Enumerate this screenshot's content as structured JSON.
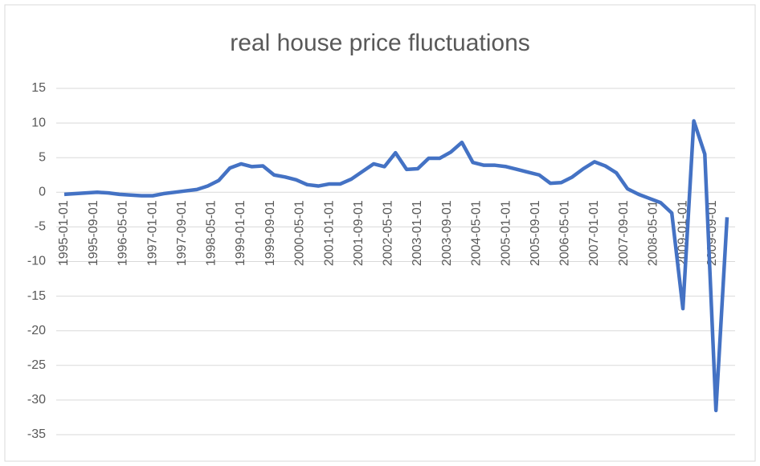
{
  "chart_data": {
    "type": "line",
    "title": "real house price fluctuations",
    "x": [
      "1995-01-01",
      "1995-04-01",
      "1995-07-01",
      "1995-10-01",
      "1996-01-01",
      "1996-04-01",
      "1996-07-01",
      "1996-10-01",
      "1997-01-01",
      "1997-04-01",
      "1997-07-01",
      "1997-10-01",
      "1998-01-01",
      "1998-04-01",
      "1998-07-01",
      "1998-10-01",
      "1999-01-01",
      "1999-04-01",
      "1999-07-01",
      "1999-10-01",
      "2000-01-01",
      "2000-04-01",
      "2000-07-01",
      "2000-10-01",
      "2001-01-01",
      "2001-04-01",
      "2001-07-01",
      "2001-10-01",
      "2002-01-01",
      "2002-04-01",
      "2002-07-01",
      "2002-10-01",
      "2003-01-01",
      "2003-04-01",
      "2003-07-01",
      "2003-10-01",
      "2004-01-01",
      "2004-04-01",
      "2004-07-01",
      "2004-10-01",
      "2005-01-01",
      "2005-04-01",
      "2005-07-01",
      "2005-10-01",
      "2006-01-01",
      "2006-04-01",
      "2006-07-01",
      "2006-10-01",
      "2007-01-01",
      "2007-04-01",
      "2007-07-01",
      "2007-10-01",
      "2008-01-01",
      "2008-04-01",
      "2008-07-01",
      "2008-10-01",
      "2009-01-01",
      "2009-04-01",
      "2009-07-01",
      "2009-10-01",
      "2010-01-01"
    ],
    "series": [
      {
        "color": "#4472c4",
        "values": [
          -0.3,
          -0.2,
          -0.1,
          0.0,
          -0.1,
          -0.3,
          -0.4,
          -0.5,
          -0.5,
          -0.2,
          0.0,
          0.2,
          0.4,
          0.9,
          1.7,
          3.5,
          4.1,
          3.7,
          3.8,
          2.5,
          2.2,
          1.8,
          1.1,
          0.9,
          1.2,
          1.2,
          1.9,
          3.0,
          4.1,
          3.7,
          5.7,
          3.3,
          3.4,
          4.9,
          4.9,
          5.8,
          7.2,
          4.3,
          3.9,
          3.9,
          3.7,
          3.3,
          2.9,
          2.5,
          1.3,
          1.4,
          2.2,
          3.4,
          4.4,
          3.8,
          2.8,
          0.5,
          -0.3,
          -0.9,
          -1.5,
          -3.0,
          -16.8,
          10.3,
          5.5,
          -31.5,
          -3.6
        ]
      }
    ],
    "xlim": [
      "1995-01-01",
      "2010-01-01"
    ],
    "xticks": [
      "1995-01-01",
      "1995-09-01",
      "1996-05-01",
      "1997-01-01",
      "1997-09-01",
      "1998-05-01",
      "1999-01-01",
      "1999-09-01",
      "2000-05-01",
      "2001-01-01",
      "2001-09-01",
      "2002-05-01",
      "2003-01-01",
      "2003-09-01",
      "2004-05-01",
      "2005-01-01",
      "2005-09-01",
      "2006-05-01",
      "2007-01-01",
      "2007-09-01",
      "2008-05-01",
      "2009-01-01",
      "2009-09-01"
    ],
    "ylim": [
      -35,
      15
    ],
    "yticks": [
      -35,
      -30,
      -25,
      -20,
      -15,
      -10,
      -5,
      0,
      5,
      10,
      15
    ],
    "grid": true
  }
}
